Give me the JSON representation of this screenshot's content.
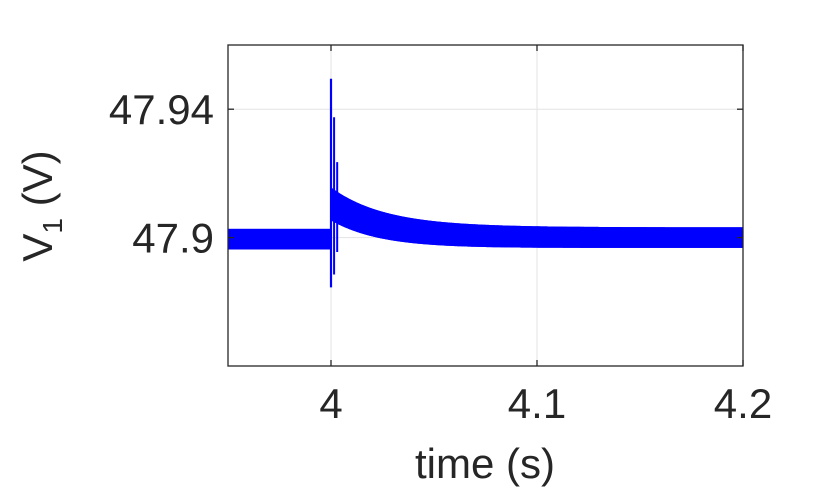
{
  "chart_data": {
    "type": "line",
    "title": "",
    "xlabel": "time (s)",
    "ylabel_main": "V",
    "ylabel_sub": "1",
    "ylabel_unit": " (V)",
    "xlim": [
      3.95,
      4.2
    ],
    "ylim": [
      47.86,
      47.96
    ],
    "xticks": [
      4,
      4.1,
      4.2
    ],
    "xtick_labels": [
      "4",
      "4.1",
      "4.2"
    ],
    "yticks": [
      47.9,
      47.94
    ],
    "ytick_labels": [
      "47.9",
      "47.94"
    ],
    "grid": true,
    "series": [
      {
        "color": "#0000ff",
        "steady_mean": 47.8995,
        "ripple_amplitude": 0.0032,
        "step_time": 4.0,
        "peak_value": 47.9495,
        "dip_value": 47.8845,
        "settled_mean": 47.9,
        "decay_tau": 0.025,
        "initial_offset": 0.0105
      }
    ]
  }
}
